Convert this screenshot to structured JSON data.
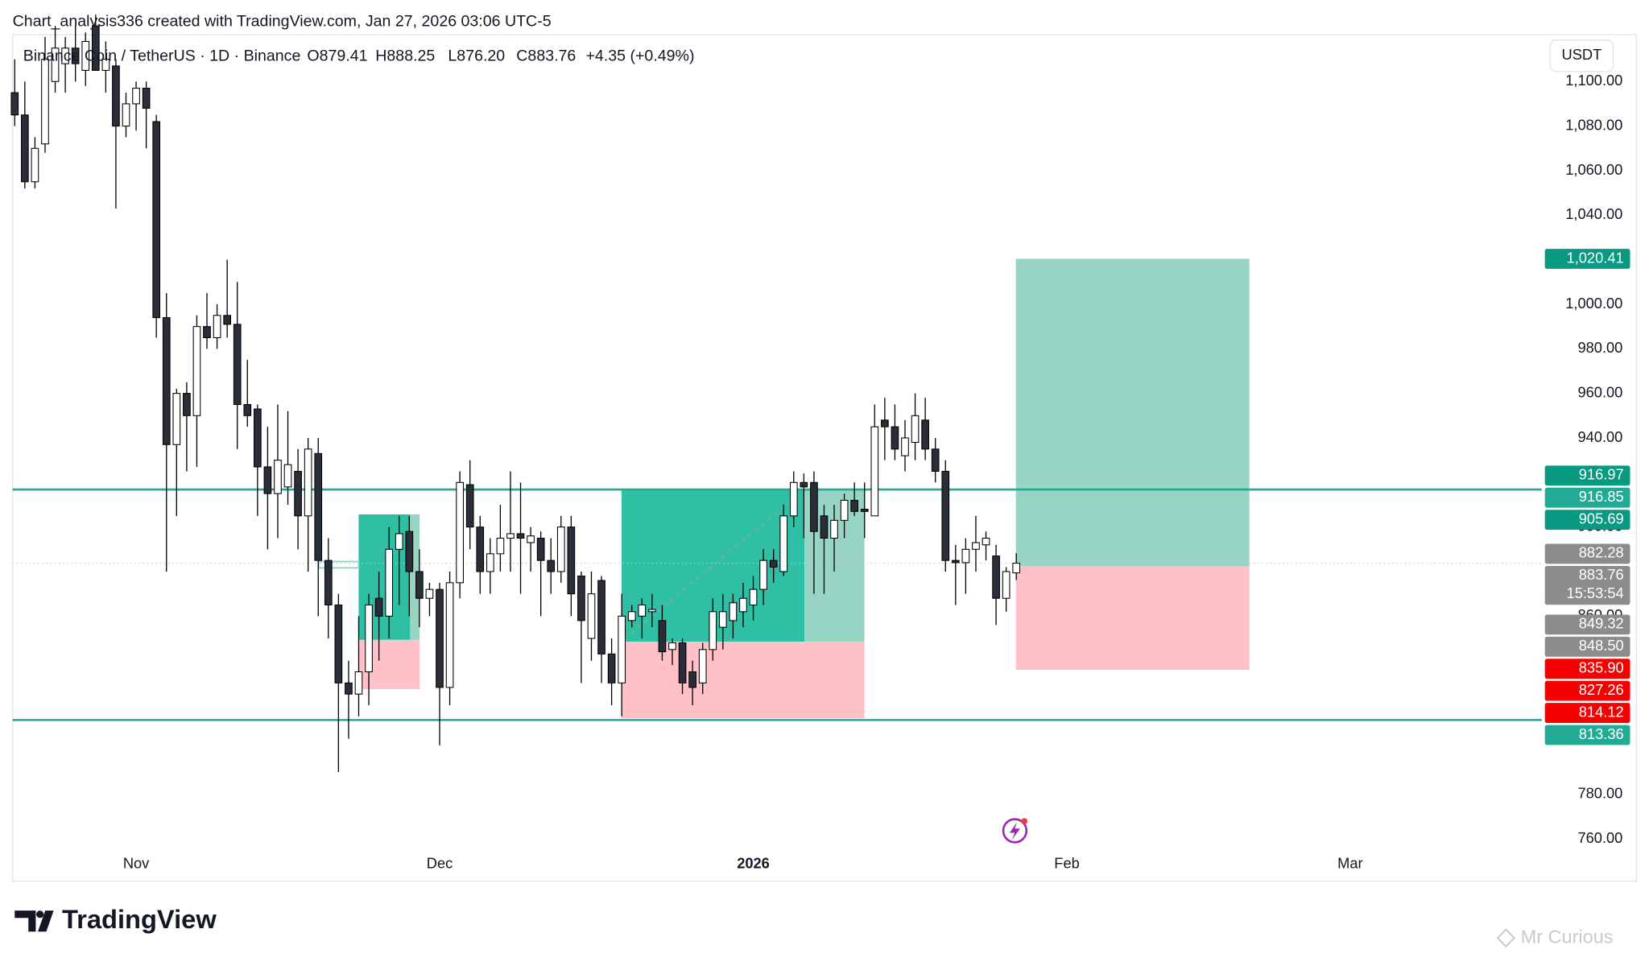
{
  "header": "Chart_analysis336 created with TradingView.com, Jan 27, 2026 03:06 UTC-5",
  "currency_button": "USDT",
  "brand": "TradingView",
  "watermark": "Mr Curious",
  "chart_data": {
    "type": "candlestick",
    "symbol": "Binance Coin / TetherUS · 1D · Binance",
    "legend": {
      "open": {
        "value": 879.41,
        "label": "O879.41"
      },
      "high": {
        "value": 888.25,
        "label": "H888.25"
      },
      "low": {
        "value": 876.2,
        "label": "L876.20"
      },
      "close": {
        "value": 883.76,
        "label": "C883.76"
      },
      "change": "+4.35 (+0.49%)"
    },
    "categories": [
      null,
      null,
      null,
      null,
      null,
      null,
      null,
      null,
      null,
      null,
      null,
      null,
      "Nov",
      null,
      null,
      null,
      null,
      null,
      null,
      null,
      null,
      null,
      null,
      null,
      null,
      null,
      null,
      null,
      null,
      null,
      null,
      null,
      null,
      null,
      null,
      null,
      null,
      null,
      null,
      null,
      null,
      null,
      "Dec",
      null,
      null,
      null,
      null,
      null,
      null,
      null,
      null,
      null,
      null,
      null,
      null,
      null,
      null,
      null,
      null,
      null,
      null,
      null,
      null,
      null,
      null,
      null,
      null,
      null,
      null,
      null,
      null,
      null,
      null,
      "2026",
      null,
      null,
      null,
      null,
      null,
      null,
      null,
      null,
      null,
      null,
      null,
      null,
      null,
      null,
      null,
      null,
      null,
      null,
      null,
      null,
      null,
      null,
      null,
      null,
      null,
      null,
      null,
      null,
      null,
      null,
      "Feb",
      null,
      null,
      null,
      null,
      null,
      null,
      null,
      null,
      null,
      null,
      null,
      null,
      null,
      null,
      null,
      null,
      null,
      null,
      null,
      null,
      null,
      null,
      null,
      null,
      null,
      null,
      null,
      "Mar"
    ],
    "open": [
      1095,
      1085,
      1055,
      1072,
      1100,
      1108,
      1115,
      1105,
      1125,
      1105,
      1107,
      1080,
      1090,
      1097,
      1082,
      994,
      937,
      960,
      950,
      990,
      985,
      995,
      991,
      955,
      953,
      927,
      915,
      918,
      925,
      905,
      933,
      885,
      865,
      830,
      825,
      835,
      868,
      860,
      890,
      898,
      880,
      868,
      872,
      828,
      875,
      919,
      900,
      880,
      888,
      895,
      897,
      893,
      895,
      885,
      880,
      900,
      878,
      850,
      876,
      843,
      830,
      858,
      860,
      862,
      858,
      845,
      848,
      835,
      830,
      845,
      855,
      858,
      862,
      865,
      872,
      885,
      880,
      905,
      920,
      920,
      905,
      895,
      903,
      912,
      908,
      905,
      948,
      945,
      932,
      938,
      948,
      935,
      925,
      885,
      884,
      890,
      892,
      887,
      868,
      879.41,
      null,
      null,
      null,
      null,
      null,
      null,
      null,
      null,
      null,
      null,
      null,
      null,
      null,
      null,
      null,
      null,
      null,
      null,
      null,
      null,
      null,
      null,
      null,
      null,
      null,
      null,
      null,
      null,
      null,
      null,
      null,
      null,
      null
    ],
    "high": [
      1110,
      1100,
      1075,
      1120,
      1125,
      1120,
      1125,
      1122,
      1130,
      1118,
      1110,
      1095,
      1100,
      1100,
      1085,
      1005,
      962,
      965,
      995,
      1005,
      1000,
      1020,
      1010,
      975,
      955,
      945,
      955,
      952,
      935,
      940,
      940,
      895,
      870,
      840,
      860,
      870,
      880,
      900,
      905,
      905,
      890,
      875,
      875,
      880,
      925,
      930,
      905,
      895,
      910,
      925,
      920,
      900,
      898,
      895,
      905,
      905,
      880,
      880,
      878,
      850,
      870,
      865,
      868,
      870,
      865,
      850,
      850,
      840,
      848,
      868,
      870,
      870,
      875,
      878,
      890,
      890,
      910,
      925,
      924,
      925,
      910,
      910,
      915,
      920,
      920,
      955,
      958,
      955,
      948,
      960,
      958,
      940,
      930,
      892,
      895,
      905,
      898,
      892,
      882,
      888.25,
      null,
      null,
      null,
      null,
      null,
      null,
      null,
      null,
      null,
      null,
      null,
      null,
      null,
      null,
      null,
      null,
      null,
      null,
      null,
      null,
      null,
      null,
      null,
      null,
      null,
      null,
      null,
      null,
      null,
      null,
      null,
      null,
      null
    ],
    "low": [
      1080,
      1052,
      1052,
      1068,
      1095,
      1095,
      1100,
      1098,
      1105,
      1095,
      1043,
      1075,
      1078,
      1070,
      985,
      880,
      905,
      925,
      927,
      980,
      980,
      985,
      935,
      945,
      905,
      890,
      895,
      910,
      890,
      880,
      860,
      850,
      790,
      805,
      815,
      820,
      840,
      850,
      865,
      860,
      855,
      860,
      802,
      820,
      868,
      890,
      870,
      870,
      880,
      880,
      870,
      880,
      860,
      870,
      875,
      860,
      830,
      840,
      830,
      820,
      815,
      855,
      850,
      855,
      840,
      838,
      825,
      820,
      825,
      840,
      845,
      850,
      855,
      858,
      865,
      875,
      878,
      900,
      895,
      870,
      870,
      880,
      895,
      905,
      895,
      905,
      930,
      930,
      925,
      930,
      930,
      920,
      880,
      865,
      870,
      880,
      885,
      856,
      862,
      876.2,
      null,
      null,
      null,
      null,
      null,
      null,
      null,
      null,
      null,
      null,
      null,
      null,
      null,
      null,
      null,
      null,
      null,
      null,
      null,
      null,
      null,
      null,
      null,
      null,
      null,
      null,
      null,
      null,
      null,
      null,
      null,
      null,
      null
    ],
    "close": [
      1085,
      1055,
      1070,
      1110,
      1115,
      1115,
      1108,
      1118,
      1105,
      1110,
      1080,
      1090,
      1097,
      1088,
      994,
      937,
      960,
      950,
      990,
      985,
      995,
      991,
      955,
      950,
      927,
      915,
      930,
      928,
      905,
      935,
      885,
      865,
      830,
      825,
      835,
      865,
      860,
      890,
      897,
      880,
      868,
      872,
      828,
      875,
      920,
      900,
      880,
      888,
      895,
      897,
      895,
      896,
      885,
      880,
      900,
      870,
      858,
      870,
      843,
      830,
      860,
      862,
      865,
      863,
      844,
      848,
      830,
      828,
      845,
      862,
      862,
      866,
      868,
      872,
      885,
      882,
      905,
      920,
      918,
      898,
      895,
      903,
      912,
      907,
      907,
      945,
      945,
      935,
      940,
      950,
      935,
      925,
      885,
      884,
      890,
      893,
      895,
      868,
      880,
      883.76,
      null,
      null,
      null,
      null,
      null,
      null,
      null,
      null,
      null,
      null,
      null,
      null,
      null,
      null,
      null,
      null,
      null,
      null,
      null,
      null,
      null,
      null,
      null,
      null,
      null,
      null,
      null,
      null,
      null,
      null,
      null,
      null,
      null
    ],
    "up_color": "#ffffff",
    "down_color": "#2a2e39",
    "outline_color": "#000000",
    "ylim": [
      741,
      1121
    ],
    "yticks": [
      {
        "value": 1100,
        "label": "1,100.00"
      },
      {
        "value": 1080,
        "label": "1,080.00"
      },
      {
        "value": 1060,
        "label": "1,060.00"
      },
      {
        "value": 1040,
        "label": "1,040.00"
      },
      {
        "value": 1000,
        "label": "1,000.00"
      },
      {
        "value": 980,
        "label": "980.00"
      },
      {
        "value": 960,
        "label": "960.00"
      },
      {
        "value": 940,
        "label": "940.00"
      },
      {
        "value": 900,
        "label": "900.00"
      },
      {
        "value": 860,
        "label": "860.00"
      },
      {
        "value": 780,
        "label": "780.00"
      },
      {
        "value": 760,
        "label": "760.00"
      }
    ],
    "grid": false,
    "hlines": [
      {
        "value": 916.85,
        "label": "916.85"
      },
      {
        "value": 813.36,
        "label": "813.36"
      }
    ],
    "hline_color": "#22ab94",
    "positions": [
      {
        "target": {
          "value": 905.69,
          "label": "905.69"
        },
        "entry": {
          "value": 849.32,
          "label": "849.32"
        },
        "stop": {
          "value": 827.26,
          "label": "827.26"
        }
      },
      {
        "target": {
          "value": 916.97,
          "label": "916.97"
        },
        "entry": {
          "value": 848.5,
          "label": "848.50"
        },
        "stop": {
          "value": 814.12,
          "label": "814.12"
        }
      },
      {
        "target": {
          "value": 1020.41,
          "label": "1,020.41"
        },
        "entry": {
          "value": 882.28,
          "label": "882.28"
        },
        "stop": {
          "value": 835.9,
          "label": "835.90"
        }
      }
    ],
    "profit_color": "#2ebfa5",
    "profit_light_color": "#98d4c4",
    "loss_color": "#ffc0c7",
    "target_label_color": "#089981",
    "stop_label_color": "#f70000",
    "entry_label_color": "#8c8c8c",
    "current_price": {
      "value": 883.76,
      "label": "883.76"
    },
    "countdown": "15:53:54",
    "current_price_color": "#8c8c8c"
  }
}
